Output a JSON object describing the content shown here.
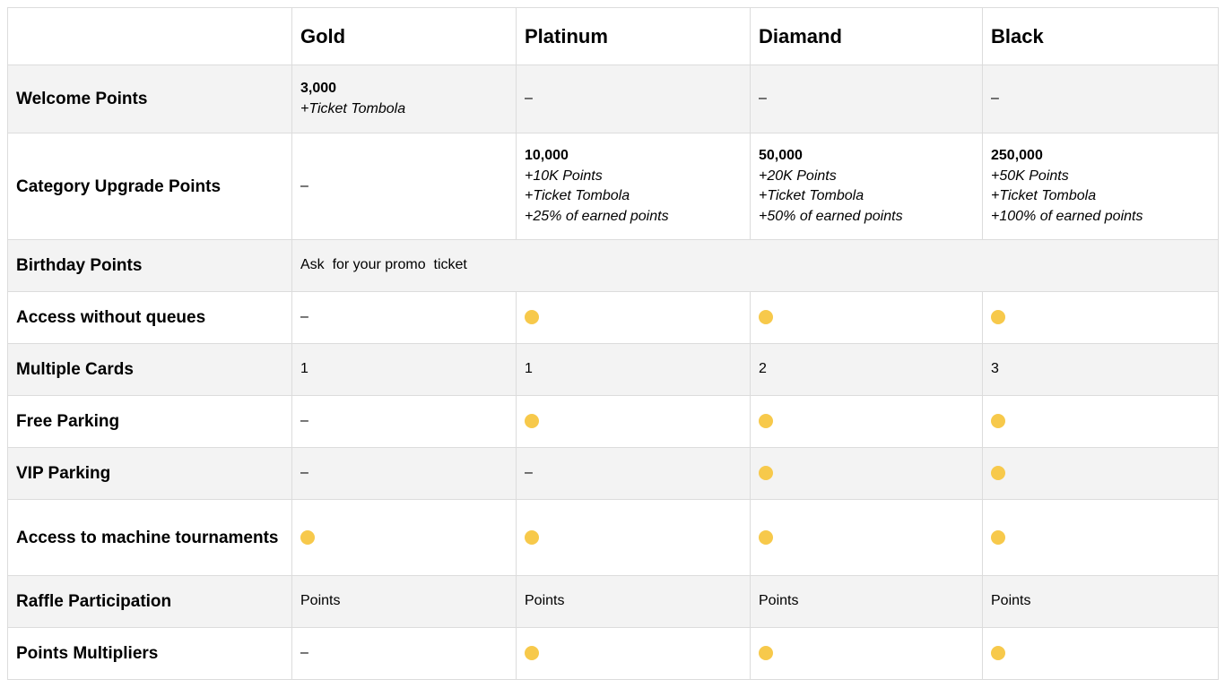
{
  "columns": [
    "",
    "Gold",
    "Platinum",
    "Diamand",
    "Black"
  ],
  "rows": {
    "welcome": {
      "label": "Welcome Points",
      "gold_value": "3,000",
      "gold_note": "+Ticket Tombola",
      "platinum": "–",
      "diamand": "–",
      "black": "–"
    },
    "upgrade": {
      "label": "Category Upgrade Points",
      "gold": "–",
      "platinum": {
        "value": "10,000",
        "lines": [
          "+10K Points",
          "+Ticket Tombola",
          "+25% of earned points"
        ]
      },
      "diamand": {
        "value": "50,000",
        "lines": [
          "+20K Points",
          "+Ticket Tombola",
          "+50% of earned points"
        ]
      },
      "black": {
        "value": "250,000",
        "lines": [
          "+50K Points",
          "+Ticket Tombola",
          "+100% of earned points"
        ]
      }
    },
    "birthday": {
      "label": "Birthday Points",
      "value": "Ask  for your promo  ticket"
    },
    "queues": {
      "label": "Access without queues",
      "gold": "–",
      "platinum": "included",
      "diamand": "included",
      "black": "included"
    },
    "cards": {
      "label": "Multiple Cards",
      "gold": "1",
      "platinum": "1",
      "diamand": "2",
      "black": "3"
    },
    "free_parking": {
      "label": "Free Parking",
      "gold": "–",
      "platinum": "included",
      "diamand": "included",
      "black": "included"
    },
    "vip_parking": {
      "label": "VIP Parking",
      "gold": "–",
      "platinum": "–",
      "diamand": "included",
      "black": "included"
    },
    "tournaments": {
      "label": "Access to machine tournaments",
      "gold": "included",
      "platinum": "included",
      "diamand": "included",
      "black": "included"
    },
    "raffle": {
      "label": "Raffle Participation",
      "gold": "Points",
      "platinum": "Points",
      "diamand": "Points",
      "black": "Points"
    },
    "multipliers": {
      "label": "Points Multipliers",
      "gold": "–",
      "platinum": "included",
      "diamand": "included",
      "black": "included"
    }
  },
  "colors": {
    "dot": "#f7c94b",
    "shade": "#f3f3f3",
    "border": "#dcdcdc"
  },
  "icons": {
    "included": "yellow-dot-icon"
  }
}
